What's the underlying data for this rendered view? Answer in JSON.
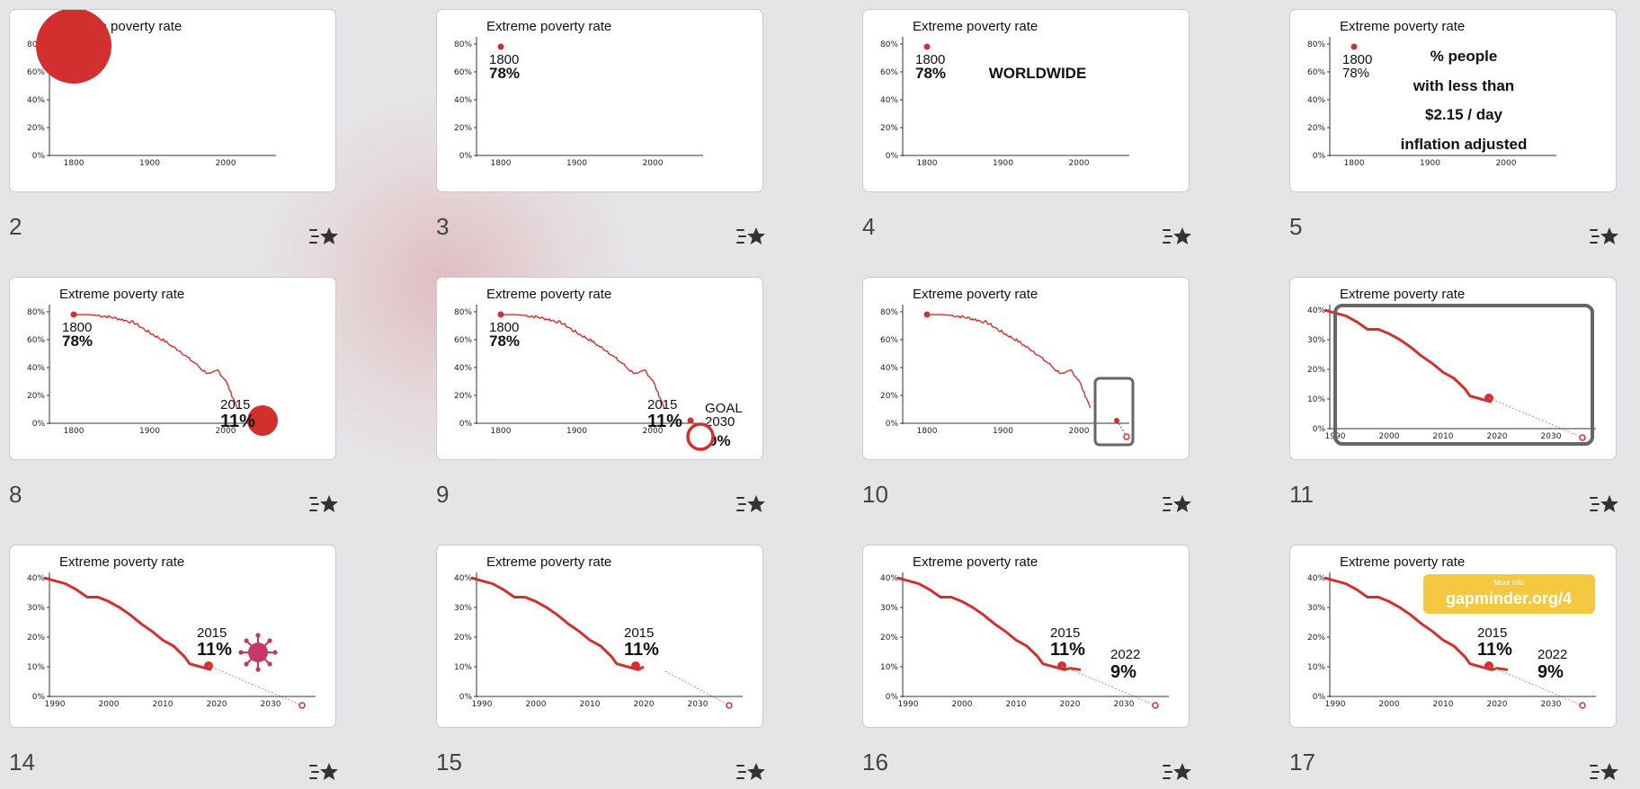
{
  "slides": [
    {
      "number": "2",
      "title": "Extreme poverty rate"
    },
    {
      "number": "3",
      "title": "Extreme poverty rate",
      "start_year": "1800",
      "start_value": "78%"
    },
    {
      "number": "4",
      "title": "Extreme poverty rate",
      "start_year": "1800",
      "start_value": "78%",
      "note": "WORLDWIDE"
    },
    {
      "number": "5",
      "title": "Extreme poverty rate",
      "start_year": "1800",
      "start_value": "78%",
      "note_lines": [
        "% people",
        "with less than",
        "$2.15 / day",
        "inflation adjusted"
      ]
    },
    {
      "number": "8",
      "title": "Extreme poverty rate",
      "start_year": "1800",
      "start_value": "78%",
      "end_year": "2015",
      "end_value": "11%"
    },
    {
      "number": "9",
      "title": "Extreme poverty rate",
      "start_year": "1800",
      "start_value": "78%",
      "end_year": "2015",
      "end_value": "11%",
      "goal_label": "GOAL",
      "goal_year": "2030",
      "goal_value": "0%"
    },
    {
      "number": "10",
      "title": "Extreme poverty rate"
    },
    {
      "number": "11",
      "title": "Extreme poverty rate"
    },
    {
      "number": "14",
      "title": "Extreme poverty rate",
      "end_year": "2015",
      "end_value": "11%"
    },
    {
      "number": "15",
      "title": "Extreme poverty rate",
      "end_year": "2015",
      "end_value": "11%"
    },
    {
      "number": "16",
      "title": "Extreme poverty rate",
      "end_year": "2015",
      "end_value": "11%",
      "last_year": "2022",
      "last_value": "9%"
    },
    {
      "number": "17",
      "title": "Extreme poverty rate",
      "end_year": "2015",
      "end_value": "11%",
      "last_year": "2022",
      "last_value": "9%",
      "link_small": "More info",
      "link_big": "gapminder.org/4"
    }
  ],
  "axes": {
    "long_x_ticks": [
      "1800",
      "1900",
      "2000"
    ],
    "long_y_ticks": [
      "0%",
      "20%",
      "40%",
      "60%",
      "80%"
    ],
    "zoom_x_ticks": [
      "1990",
      "2000",
      "2010",
      "2020",
      "2030"
    ],
    "zoom_y_ticks": [
      "0%",
      "10%",
      "20%",
      "30%",
      "40%"
    ]
  },
  "chart_data": {
    "type": "line",
    "title": "Extreme poverty rate",
    "x": [
      1800,
      1820,
      1840,
      1860,
      1880,
      1900,
      1910,
      1920,
      1930,
      1940,
      1950,
      1960,
      1970,
      1980,
      1990,
      1995,
      2000,
      2005,
      2010,
      2015,
      2019,
      2020,
      2022
    ],
    "series": [
      {
        "values": [
          78,
          78,
          77,
          75,
          72,
          65,
          62,
          59,
          55,
          52,
          47,
          43,
          38,
          35,
          38,
          34,
          31,
          24,
          18,
          11,
          9,
          10,
          9
        ]
      }
    ],
    "goal": {
      "x": 2030,
      "y": 0
    },
    "ylim": [
      0,
      80
    ],
    "accent_color": "#d32f2f",
    "grid": false
  },
  "icon": "add-to-favorites-icon"
}
